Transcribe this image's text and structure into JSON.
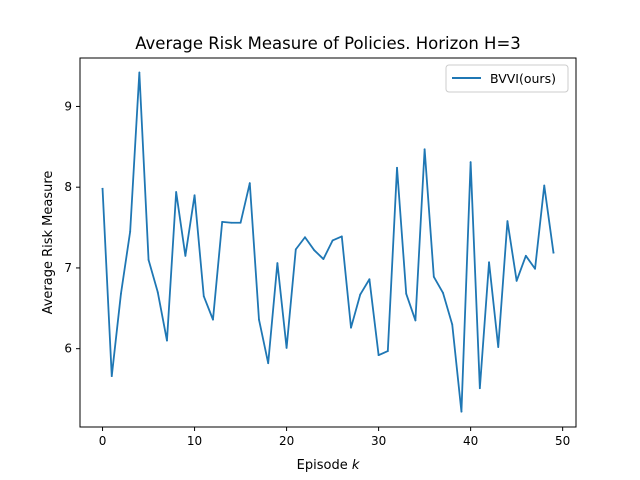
{
  "chart_data": {
    "type": "line",
    "title": "Average Risk Measure of Policies. Horizon H=3",
    "xlabel_prefix": "Episode ",
    "xlabel_var": "k",
    "ylabel": "Average Risk Measure",
    "xlim": [
      -2.45,
      51.45
    ],
    "ylim": [
      5.03,
      9.6
    ],
    "xticks": [
      0,
      10,
      20,
      30,
      40,
      50
    ],
    "yticks": [
      6,
      7,
      8,
      9
    ],
    "grid": false,
    "legend_position": "top-right",
    "series": [
      {
        "name": "BVVI(ours)",
        "color": "#1f77b4",
        "x": [
          0,
          1,
          2,
          3,
          4,
          5,
          6,
          7,
          8,
          9,
          10,
          11,
          12,
          13,
          14,
          15,
          16,
          17,
          18,
          19,
          20,
          21,
          22,
          23,
          24,
          25,
          26,
          27,
          28,
          29,
          30,
          31,
          32,
          33,
          34,
          35,
          36,
          37,
          38,
          39,
          40,
          41,
          42,
          43,
          44,
          45,
          46,
          47,
          48,
          49
        ],
        "y": [
          7.98,
          5.66,
          6.68,
          7.45,
          9.42,
          7.1,
          6.7,
          6.1,
          7.94,
          7.15,
          7.9,
          6.65,
          6.36,
          7.57,
          7.56,
          7.56,
          8.05,
          6.36,
          5.82,
          7.06,
          6.01,
          7.23,
          7.38,
          7.22,
          7.11,
          7.34,
          7.39,
          6.26,
          6.67,
          6.86,
          5.92,
          5.97,
          8.24,
          6.68,
          6.35,
          8.47,
          6.89,
          6.69,
          6.3,
          5.22,
          8.31,
          5.51,
          7.07,
          6.02,
          7.58,
          6.84,
          7.15,
          6.99,
          8.02,
          7.19
        ]
      }
    ]
  }
}
